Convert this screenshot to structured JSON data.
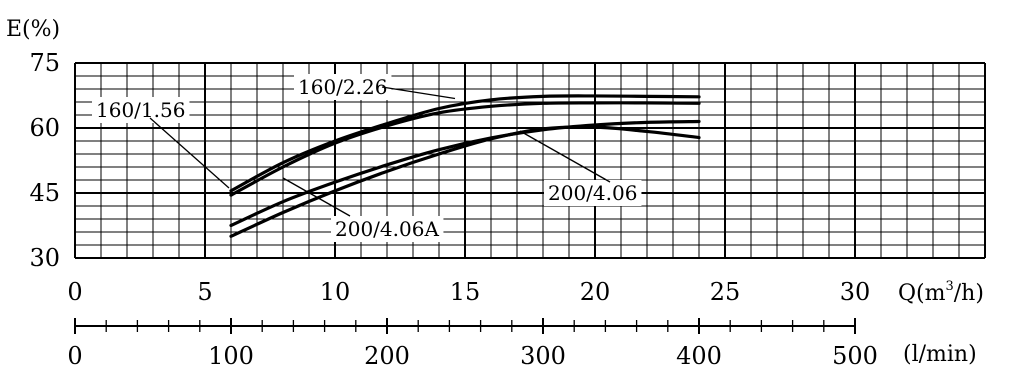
{
  "chart_data": {
    "type": "line",
    "ylabel": "E(%)",
    "xlabel": "Q(m³/h)",
    "xlabel_parts": {
      "pre": "Q(m",
      "sup": "3",
      "post": "/h)"
    },
    "xlabel2": "(l/min)",
    "xlim": [
      0,
      35
    ],
    "ylim": [
      30,
      75
    ],
    "x_ticks": [
      "0",
      "5",
      "10",
      "15",
      "20",
      "25",
      "30"
    ],
    "y_ticks": [
      "30",
      "45",
      "60",
      "75"
    ],
    "x2_ticks": [
      "0",
      "100",
      "200",
      "300",
      "400",
      "500"
    ],
    "x2_lim": [
      0,
      500
    ],
    "grid": true,
    "series": [
      {
        "name": "160/2.26",
        "x": [
          6,
          8,
          10,
          12,
          14,
          16,
          18,
          20,
          22,
          24
        ],
        "y": [
          45.5,
          52,
          57,
          61,
          64.5,
          66.5,
          67.3,
          67.4,
          67.3,
          67.2
        ]
      },
      {
        "name": "160/1.56",
        "x": [
          6,
          8,
          10,
          12,
          14,
          16,
          18,
          20,
          22,
          24
        ],
        "y": [
          44.5,
          51,
          56.5,
          60.5,
          63.5,
          65,
          65.7,
          65.8,
          65.8,
          65.7
        ]
      },
      {
        "name": "200/4.06",
        "x": [
          6,
          8,
          10,
          12,
          14,
          16,
          18,
          20,
          22,
          24
        ],
        "y": [
          37.5,
          43,
          47.5,
          51.5,
          55,
          57.7,
          59.6,
          60.7,
          61.3,
          61.5
        ]
      },
      {
        "name": "200/4.06A",
        "x": [
          6,
          8,
          10,
          12,
          14,
          16,
          18,
          20,
          22,
          24
        ],
        "y": [
          35,
          40.5,
          45.5,
          50,
          54,
          57.5,
          59.8,
          60.2,
          59.2,
          57.8
        ]
      }
    ],
    "annotations": [
      {
        "text": "160/2.26",
        "series": "160/2.26"
      },
      {
        "text": "160/1.56",
        "series": "160/1.56"
      },
      {
        "text": "200/4.06",
        "series": "200/4.06"
      },
      {
        "text": "200/4.06A",
        "series": "200/4.06A"
      }
    ]
  }
}
